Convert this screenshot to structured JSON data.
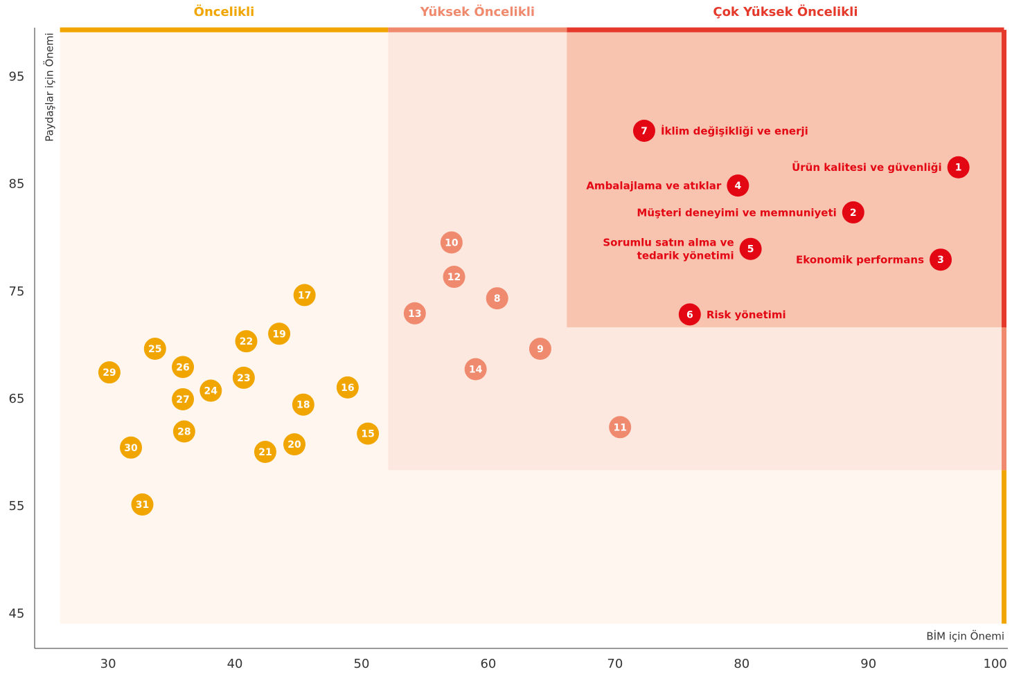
{
  "chart_data": {
    "type": "scatter",
    "x_label": "BİM için Önemi",
    "y_label": "Paydaşlar için Önemi",
    "xlim": [
      24.2,
      101
    ],
    "ylim": [
      41.8,
      99.6
    ],
    "xticks": [
      30,
      40,
      50,
      60,
      70,
      80,
      90,
      100
    ],
    "yticks": [
      45,
      55,
      65,
      75,
      85,
      95
    ],
    "zones": [
      {
        "name": "Öncelikli",
        "xlim": [
          26.2,
          100.7
        ],
        "ylim": [
          44.1,
          99.4
        ],
        "fill": "#fff7ef",
        "color": "#f0a500",
        "point_color": "#f0a500",
        "points": [
          {
            "label": "15",
            "x": 50.5,
            "y": 61.8
          },
          {
            "label": "16",
            "x": 48.9,
            "y": 66.1
          },
          {
            "label": "17",
            "x": 45.5,
            "y": 74.7
          },
          {
            "label": "18",
            "x": 45.4,
            "y": 64.5
          },
          {
            "label": "19",
            "x": 43.5,
            "y": 71.1
          },
          {
            "label": "20",
            "x": 44.7,
            "y": 60.8
          },
          {
            "label": "21",
            "x": 42.4,
            "y": 60.1
          },
          {
            "label": "22",
            "x": 40.9,
            "y": 70.4
          },
          {
            "label": "23",
            "x": 40.7,
            "y": 67.0
          },
          {
            "label": "24",
            "x": 38.1,
            "y": 65.8
          },
          {
            "label": "25",
            "x": 33.7,
            "y": 69.7
          },
          {
            "label": "26",
            "x": 35.9,
            "y": 68.0
          },
          {
            "label": "27",
            "x": 35.9,
            "y": 65.0
          },
          {
            "label": "28",
            "x": 36.0,
            "y": 62.0
          },
          {
            "label": "29",
            "x": 30.1,
            "y": 67.5
          },
          {
            "label": "30",
            "x": 31.8,
            "y": 60.5
          },
          {
            "label": "31",
            "x": 32.7,
            "y": 55.2
          }
        ]
      },
      {
        "name": "Yüksek Öncelikli",
        "xlim": [
          52.1,
          100.7
        ],
        "ylim": [
          58.4,
          99.4
        ],
        "fill": "#fde8e0",
        "color": "#f08a6e",
        "point_color": "#f08a6e",
        "points": [
          {
            "label": "8",
            "x": 60.7,
            "y": 74.4
          },
          {
            "label": "9",
            "x": 64.1,
            "y": 69.7
          },
          {
            "label": "10",
            "x": 57.1,
            "y": 79.6
          },
          {
            "label": "11",
            "x": 70.4,
            "y": 62.4
          },
          {
            "label": "12",
            "x": 57.3,
            "y": 76.4
          },
          {
            "label": "13",
            "x": 54.2,
            "y": 73.0
          },
          {
            "label": "14",
            "x": 59.0,
            "y": 67.8
          }
        ]
      },
      {
        "name": "Çok Yüksek Öncelikli",
        "xlim": [
          66.2,
          100.7
        ],
        "ylim": [
          71.7,
          99.4
        ],
        "fill": "#f8c4b0",
        "color": "#e5392c",
        "point_color": "#e30613",
        "points": [
          {
            "label": "1",
            "x": 97.1,
            "y": 86.6,
            "name": [
              "Ürün kalitesi ve güvenliği"
            ]
          },
          {
            "label": "2",
            "x": 88.8,
            "y": 82.4,
            "name": [
              "Müşteri deneyimi ve memnuniyeti"
            ]
          },
          {
            "label": "3",
            "x": 95.7,
            "y": 78.0,
            "name": [
              "Ekonomik performans"
            ]
          },
          {
            "label": "4",
            "x": 79.7,
            "y": 84.9,
            "name": [
              "Ambalajlama ve atıklar"
            ]
          },
          {
            "label": "5",
            "x": 80.7,
            "y": 79.0,
            "name": [
              "Sorumlu satın alma ve",
              "tedarik yönetimi"
            ]
          },
          {
            "label": "6",
            "x": 75.9,
            "y": 72.9,
            "name": [
              "Risk yönetimi"
            ]
          },
          {
            "label": "7",
            "x": 72.3,
            "y": 90.0,
            "name": [
              "İklim değişikliği ve enerji"
            ]
          }
        ]
      }
    ]
  }
}
